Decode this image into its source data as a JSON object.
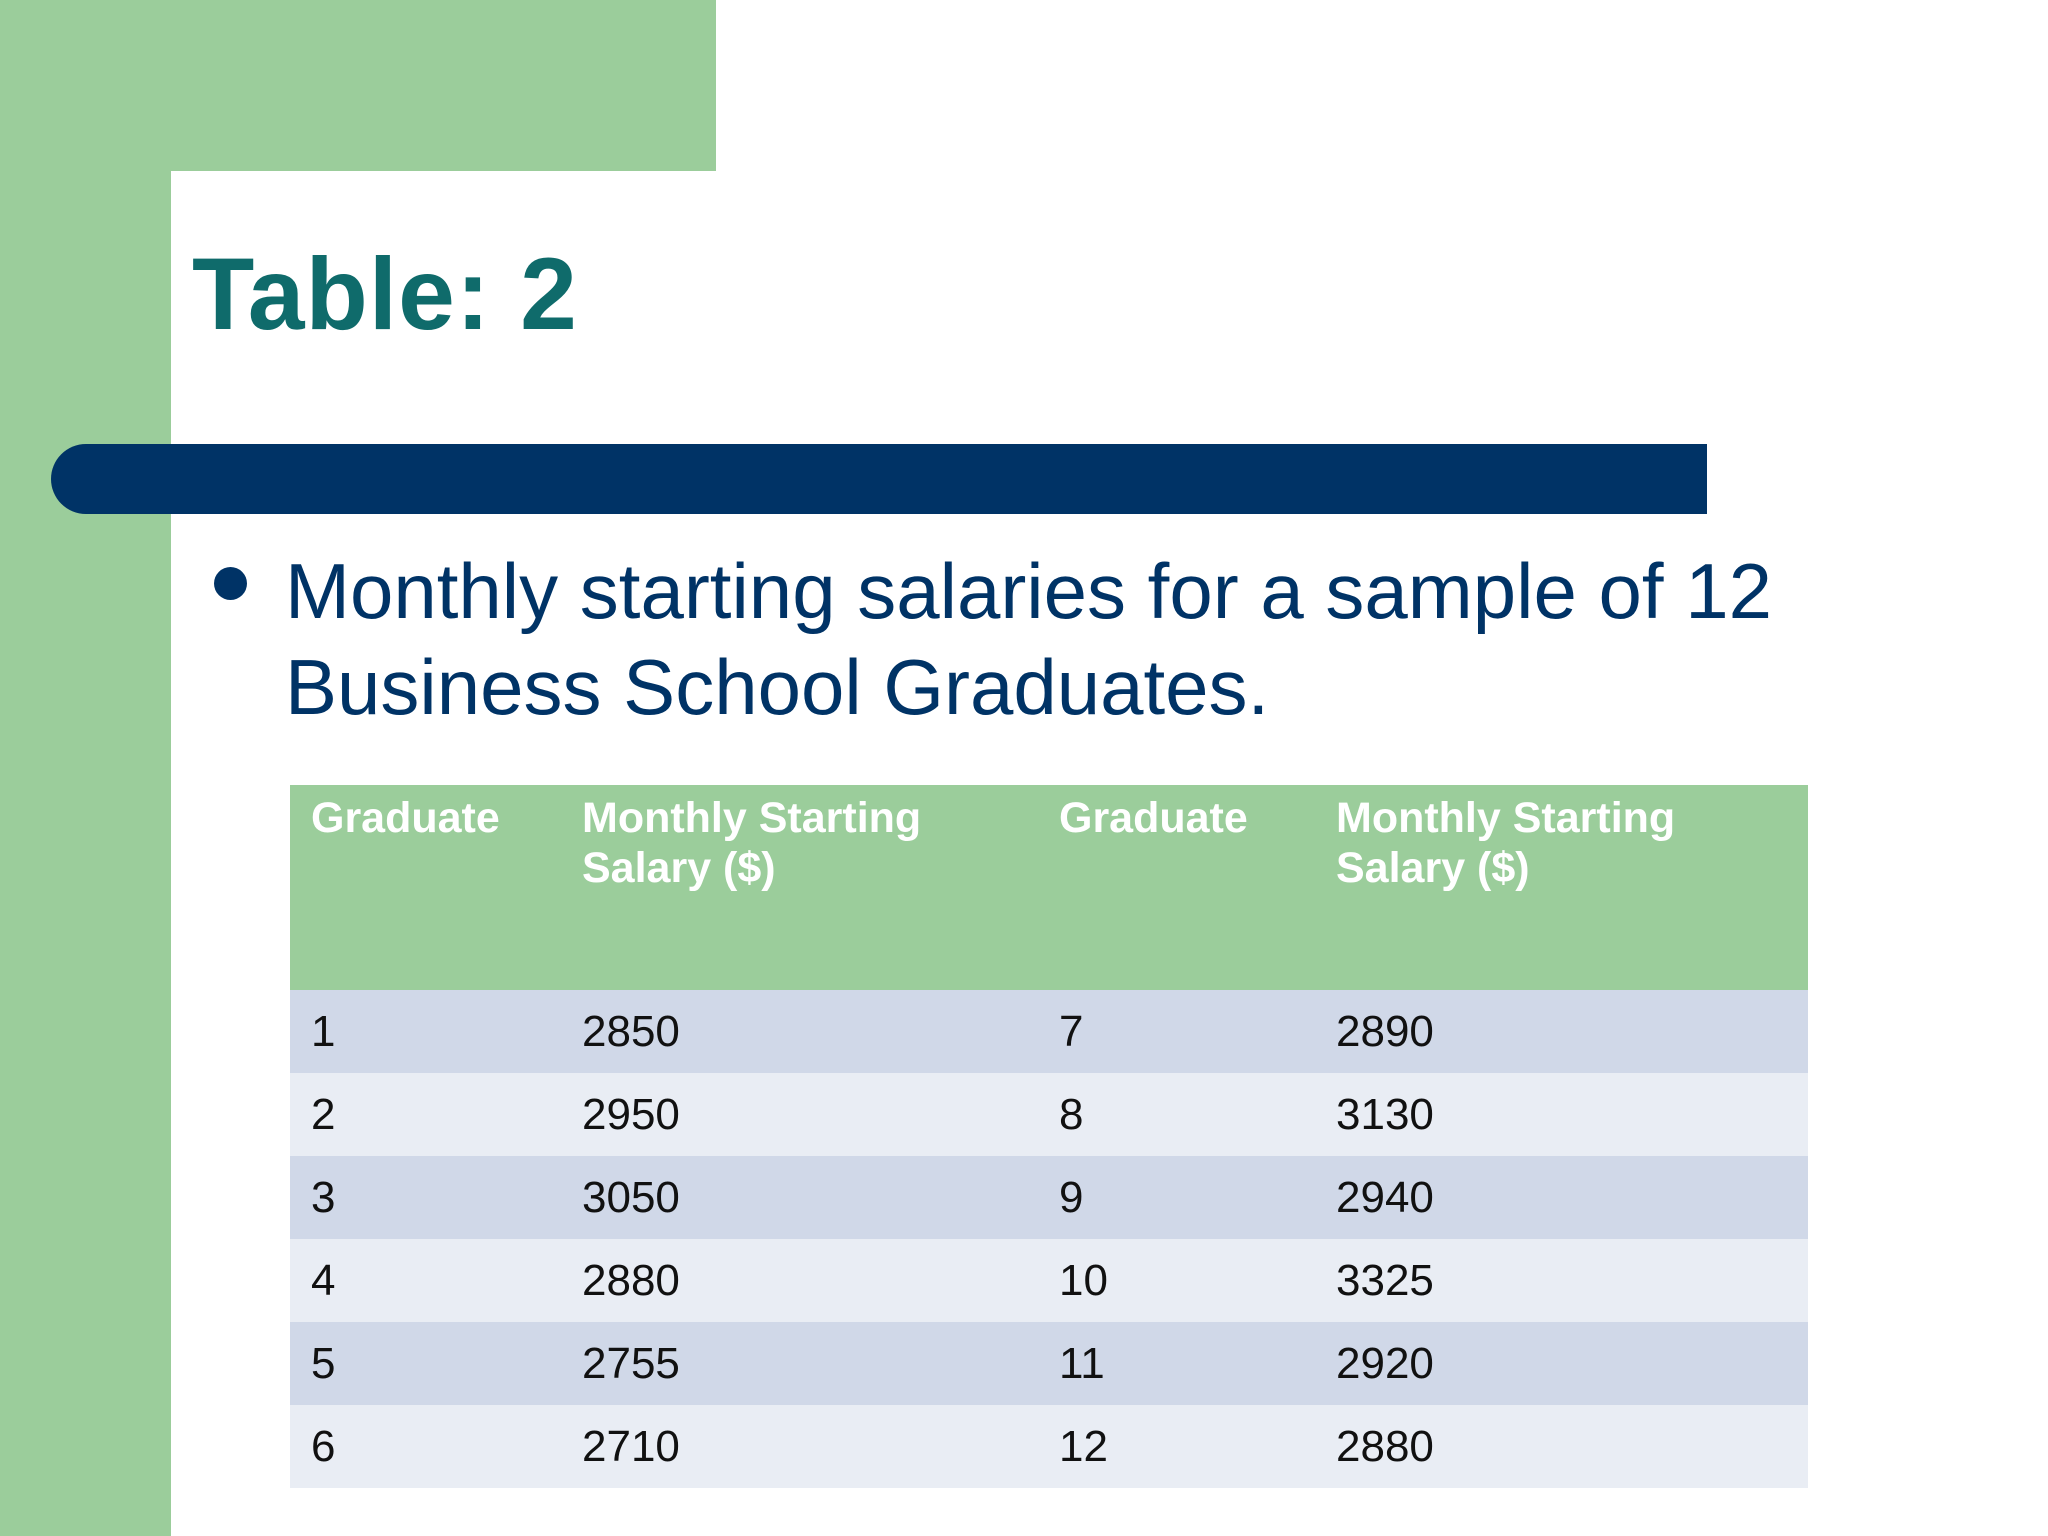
{
  "slide": {
    "title": "Table: 2",
    "bullet": "Monthly starting salaries for a sample of 12 Business School Graduates."
  },
  "colors": {
    "accent_green": "#9bcd9b",
    "navy": "#003366",
    "title_teal": "#0f6b6b",
    "row_dark": "#d0d8e8",
    "row_light": "#e9edf4"
  },
  "table": {
    "headers": [
      "Graduate",
      "Monthly Starting Salary ($)",
      "Graduate",
      "Monthly Starting Salary ($)"
    ],
    "rows": [
      [
        "1",
        "2850",
        "7",
        "2890"
      ],
      [
        "2",
        "2950",
        "8",
        "3130"
      ],
      [
        "3",
        "3050",
        "9",
        "2940"
      ],
      [
        "4",
        "2880",
        "10",
        "3325"
      ],
      [
        "5",
        "2755",
        "11",
        "2920"
      ],
      [
        "6",
        "2710",
        "12",
        "2880"
      ]
    ]
  }
}
